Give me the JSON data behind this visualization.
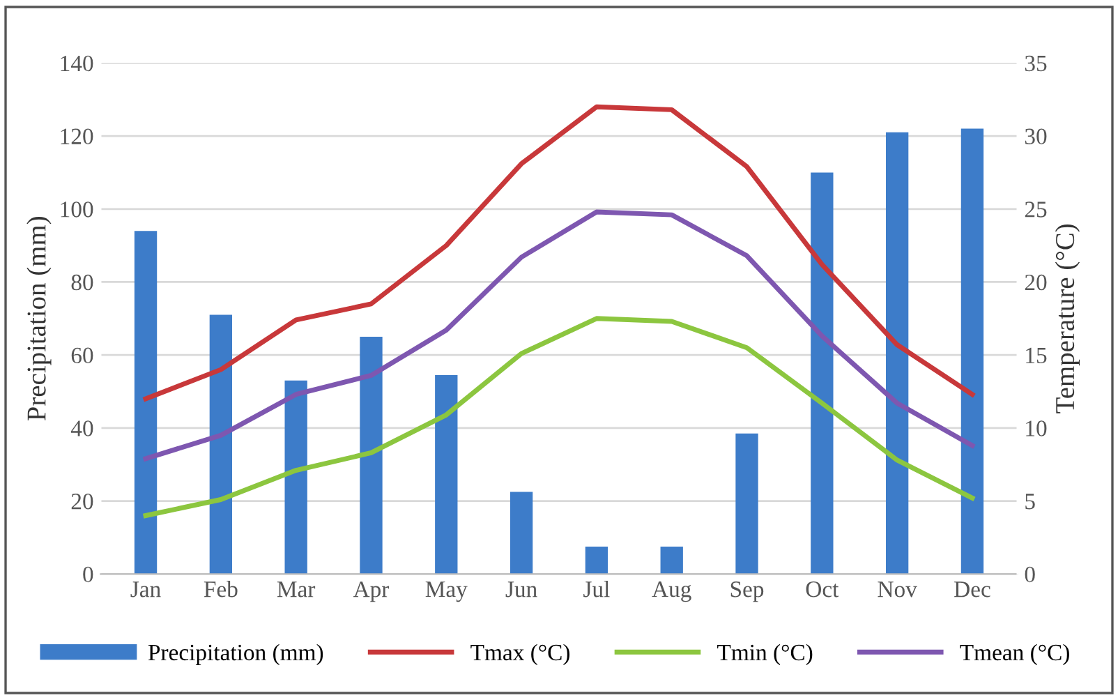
{
  "chart_data": {
    "type": "bar",
    "ylabel": "Precipitation (mm)",
    "y2label": "Temperature (°C)",
    "categories": [
      "Jan",
      "Feb",
      "Mar",
      "Apr",
      "May",
      "Jun",
      "Jul",
      "Aug",
      "Sep",
      "Oct",
      "Nov",
      "Dec"
    ],
    "series": [
      {
        "name": "Precipitation (mm)",
        "color": "#3d7cc9",
        "values": [
          94,
          71,
          53,
          65,
          54.5,
          22.5,
          7.5,
          7.5,
          38.5,
          110,
          121,
          122
        ]
      },
      {
        "name": "Tmax (°C)",
        "type": "line",
        "axis": "y2",
        "color": "#c8383a",
        "values": [
          12.0,
          14.0,
          17.4,
          18.5,
          22.5,
          28.1,
          32.0,
          31.8,
          27.9,
          21.2,
          15.7,
          12.3
        ]
      },
      {
        "name": "Tmin (°C)",
        "type": "line",
        "axis": "y2",
        "color": "#8cc63f",
        "values": [
          4.0,
          5.1,
          7.1,
          8.3,
          10.9,
          15.1,
          17.5,
          17.3,
          15.5,
          11.7,
          7.8,
          5.2
        ]
      },
      {
        "name": "Tmean (°C)",
        "type": "line",
        "axis": "y2",
        "color": "#7e57b0",
        "values": [
          7.9,
          9.5,
          12.3,
          13.6,
          16.7,
          21.7,
          24.8,
          24.6,
          21.8,
          16.3,
          11.7,
          8.8
        ]
      }
    ],
    "ylim": [
      0,
      140
    ],
    "yticks": [
      0,
      20,
      40,
      60,
      80,
      100,
      120,
      140
    ],
    "y2lim": [
      0,
      35
    ],
    "y2ticks": [
      0,
      5,
      10,
      15,
      20,
      25,
      30,
      35
    ],
    "grid": "y",
    "legend": "bottom",
    "marker": "none",
    "line_style": "solid"
  }
}
